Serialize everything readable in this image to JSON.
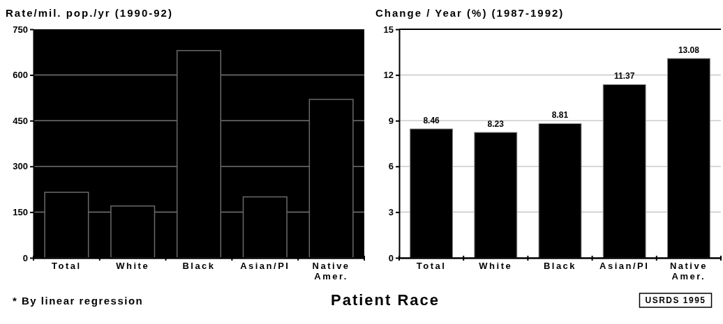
{
  "chart_data": [
    {
      "type": "bar",
      "title": "Rate/mil. pop./yr (1990-92)",
      "xlabel": "Patient Race",
      "categories": [
        "Total",
        "White",
        "Black",
        "Asian/PI",
        "Native Amer."
      ],
      "values": [
        215,
        170,
        680,
        200,
        520
      ],
      "color": "#000000",
      "ylim": [
        0,
        750
      ],
      "yticks": [
        0,
        150,
        300,
        450,
        600,
        750
      ],
      "grid": "y"
    },
    {
      "type": "bar",
      "title": "Change / Year (%) (1987-1992)",
      "categories": [
        "Total",
        "White",
        "Black",
        "Asian/PI",
        "Native Amer."
      ],
      "values": [
        8.46,
        8.23,
        8.81,
        11.37,
        13.08
      ],
      "color": "#000000",
      "ylim": [
        0,
        15
      ],
      "yticks": [
        0,
        3,
        6,
        9,
        12,
        15
      ],
      "grid": "y",
      "data_labels": true,
      "annotations": [
        "* By linear regression",
        "USRDS 1995"
      ]
    }
  ]
}
